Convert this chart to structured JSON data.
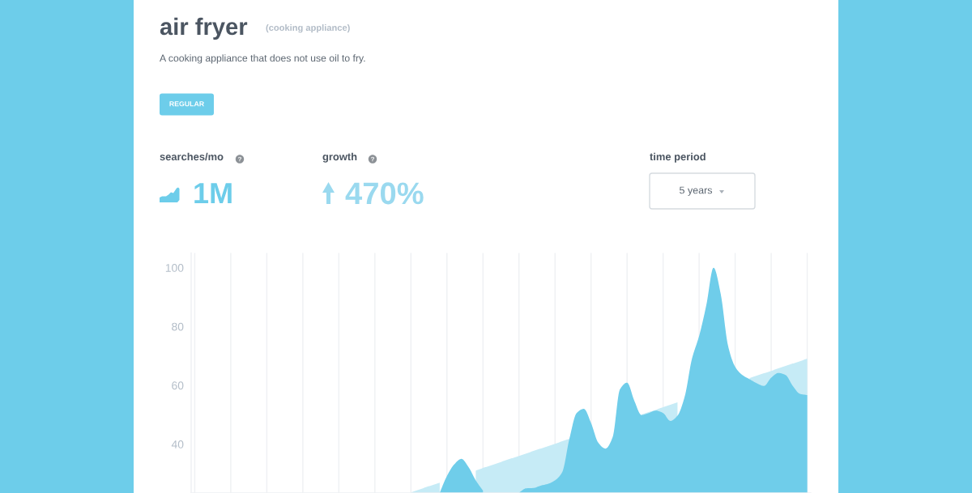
{
  "chart_data": {
    "type": "area",
    "title": "air fryer",
    "subtitle": "(cooking appliance)",
    "annotations": [
      "A cooking appliance that does not use oil to fry.",
      "REGULAR",
      "searches/mo",
      "1M",
      "growth",
      "470%",
      "time period",
      "5 years"
    ],
    "categories": [
      null,
      null,
      null,
      null,
      null,
      null,
      null,
      null,
      null,
      null,
      null,
      null,
      null,
      null,
      null,
      null,
      null,
      null,
      null,
      null,
      null,
      null,
      null,
      null,
      null,
      null,
      null,
      null,
      null,
      null,
      null,
      null,
      null,
      null,
      null,
      null,
      null,
      null,
      null,
      null,
      null,
      null,
      null,
      null,
      null,
      null,
      null,
      null,
      null,
      null,
      null,
      null,
      null,
      null,
      null,
      null,
      null,
      null,
      null,
      null,
      null,
      null,
      null,
      null,
      null,
      null,
      null,
      null,
      null,
      null,
      null,
      null,
      null,
      null,
      null,
      null,
      null,
      null,
      null,
      null,
      null,
      null,
      null,
      null,
      null,
      null
    ],
    "series": [
      {
        "color": "#c6ebf6",
        "values": [
          null,
          null,
          null,
          null,
          null,
          null,
          null,
          null,
          null,
          null,
          null,
          null,
          null,
          null,
          null,
          null,
          null,
          null,
          null,
          null,
          null,
          null,
          null,
          null,
          null,
          null,
          null,
          null,
          null,
          null,
          23.6,
          24.4,
          25.3,
          26.1,
          26.9,
          null,
          null,
          null,
          null,
          31.0,
          31.9,
          32.7,
          33.5,
          34.4,
          35.2,
          36.0,
          36.8,
          37.7,
          38.5,
          39.3,
          40.1,
          41.0,
          41.8,
          null,
          null,
          null,
          null,
          null,
          null,
          null,
          null,
          null,
          50.1,
          50.9,
          51.7,
          52.6,
          53.4,
          54.2,
          null,
          null,
          null,
          null,
          null,
          null,
          null,
          null,
          null,
          62.5,
          63.3,
          64.1,
          64.9,
          65.8,
          66.6,
          67.4,
          68.2,
          69.1
        ]
      },
      {
        "color": "#6fcdea",
        "values": [
          null,
          null,
          null,
          null,
          null,
          null,
          null,
          null,
          null,
          null,
          null,
          null,
          null,
          null,
          null,
          null,
          null,
          null,
          null,
          null,
          null,
          null,
          null,
          null,
          null,
          null,
          null,
          null,
          null,
          null,
          null,
          null,
          null,
          null,
          23.5,
          29.2,
          33.1,
          35.0,
          32.2,
          27.7,
          24.2,
          null,
          null,
          null,
          null,
          23.5,
          25.0,
          25.1,
          25.9,
          26.5,
          27.7,
          30.5,
          41.9,
          50.6,
          52.0,
          47.2,
          40.5,
          38.5,
          42.4,
          58.6,
          60.9,
          54.8,
          49.9,
          50.6,
          51.4,
          50.6,
          47.9,
          49.7,
          56.2,
          69.0,
          76.8,
          87.3,
          100,
          91.0,
          73.6,
          66.3,
          63.5,
          62.1,
          60.7,
          59.8,
          62.6,
          64.2,
          63.5,
          59.8,
          57.1,
          56.7
        ]
      }
    ],
    "ylim": [
      23.4,
      105
    ],
    "yticks": [
      40,
      60,
      80,
      100
    ],
    "grid": "x",
    "tick_labels": "y"
  }
}
